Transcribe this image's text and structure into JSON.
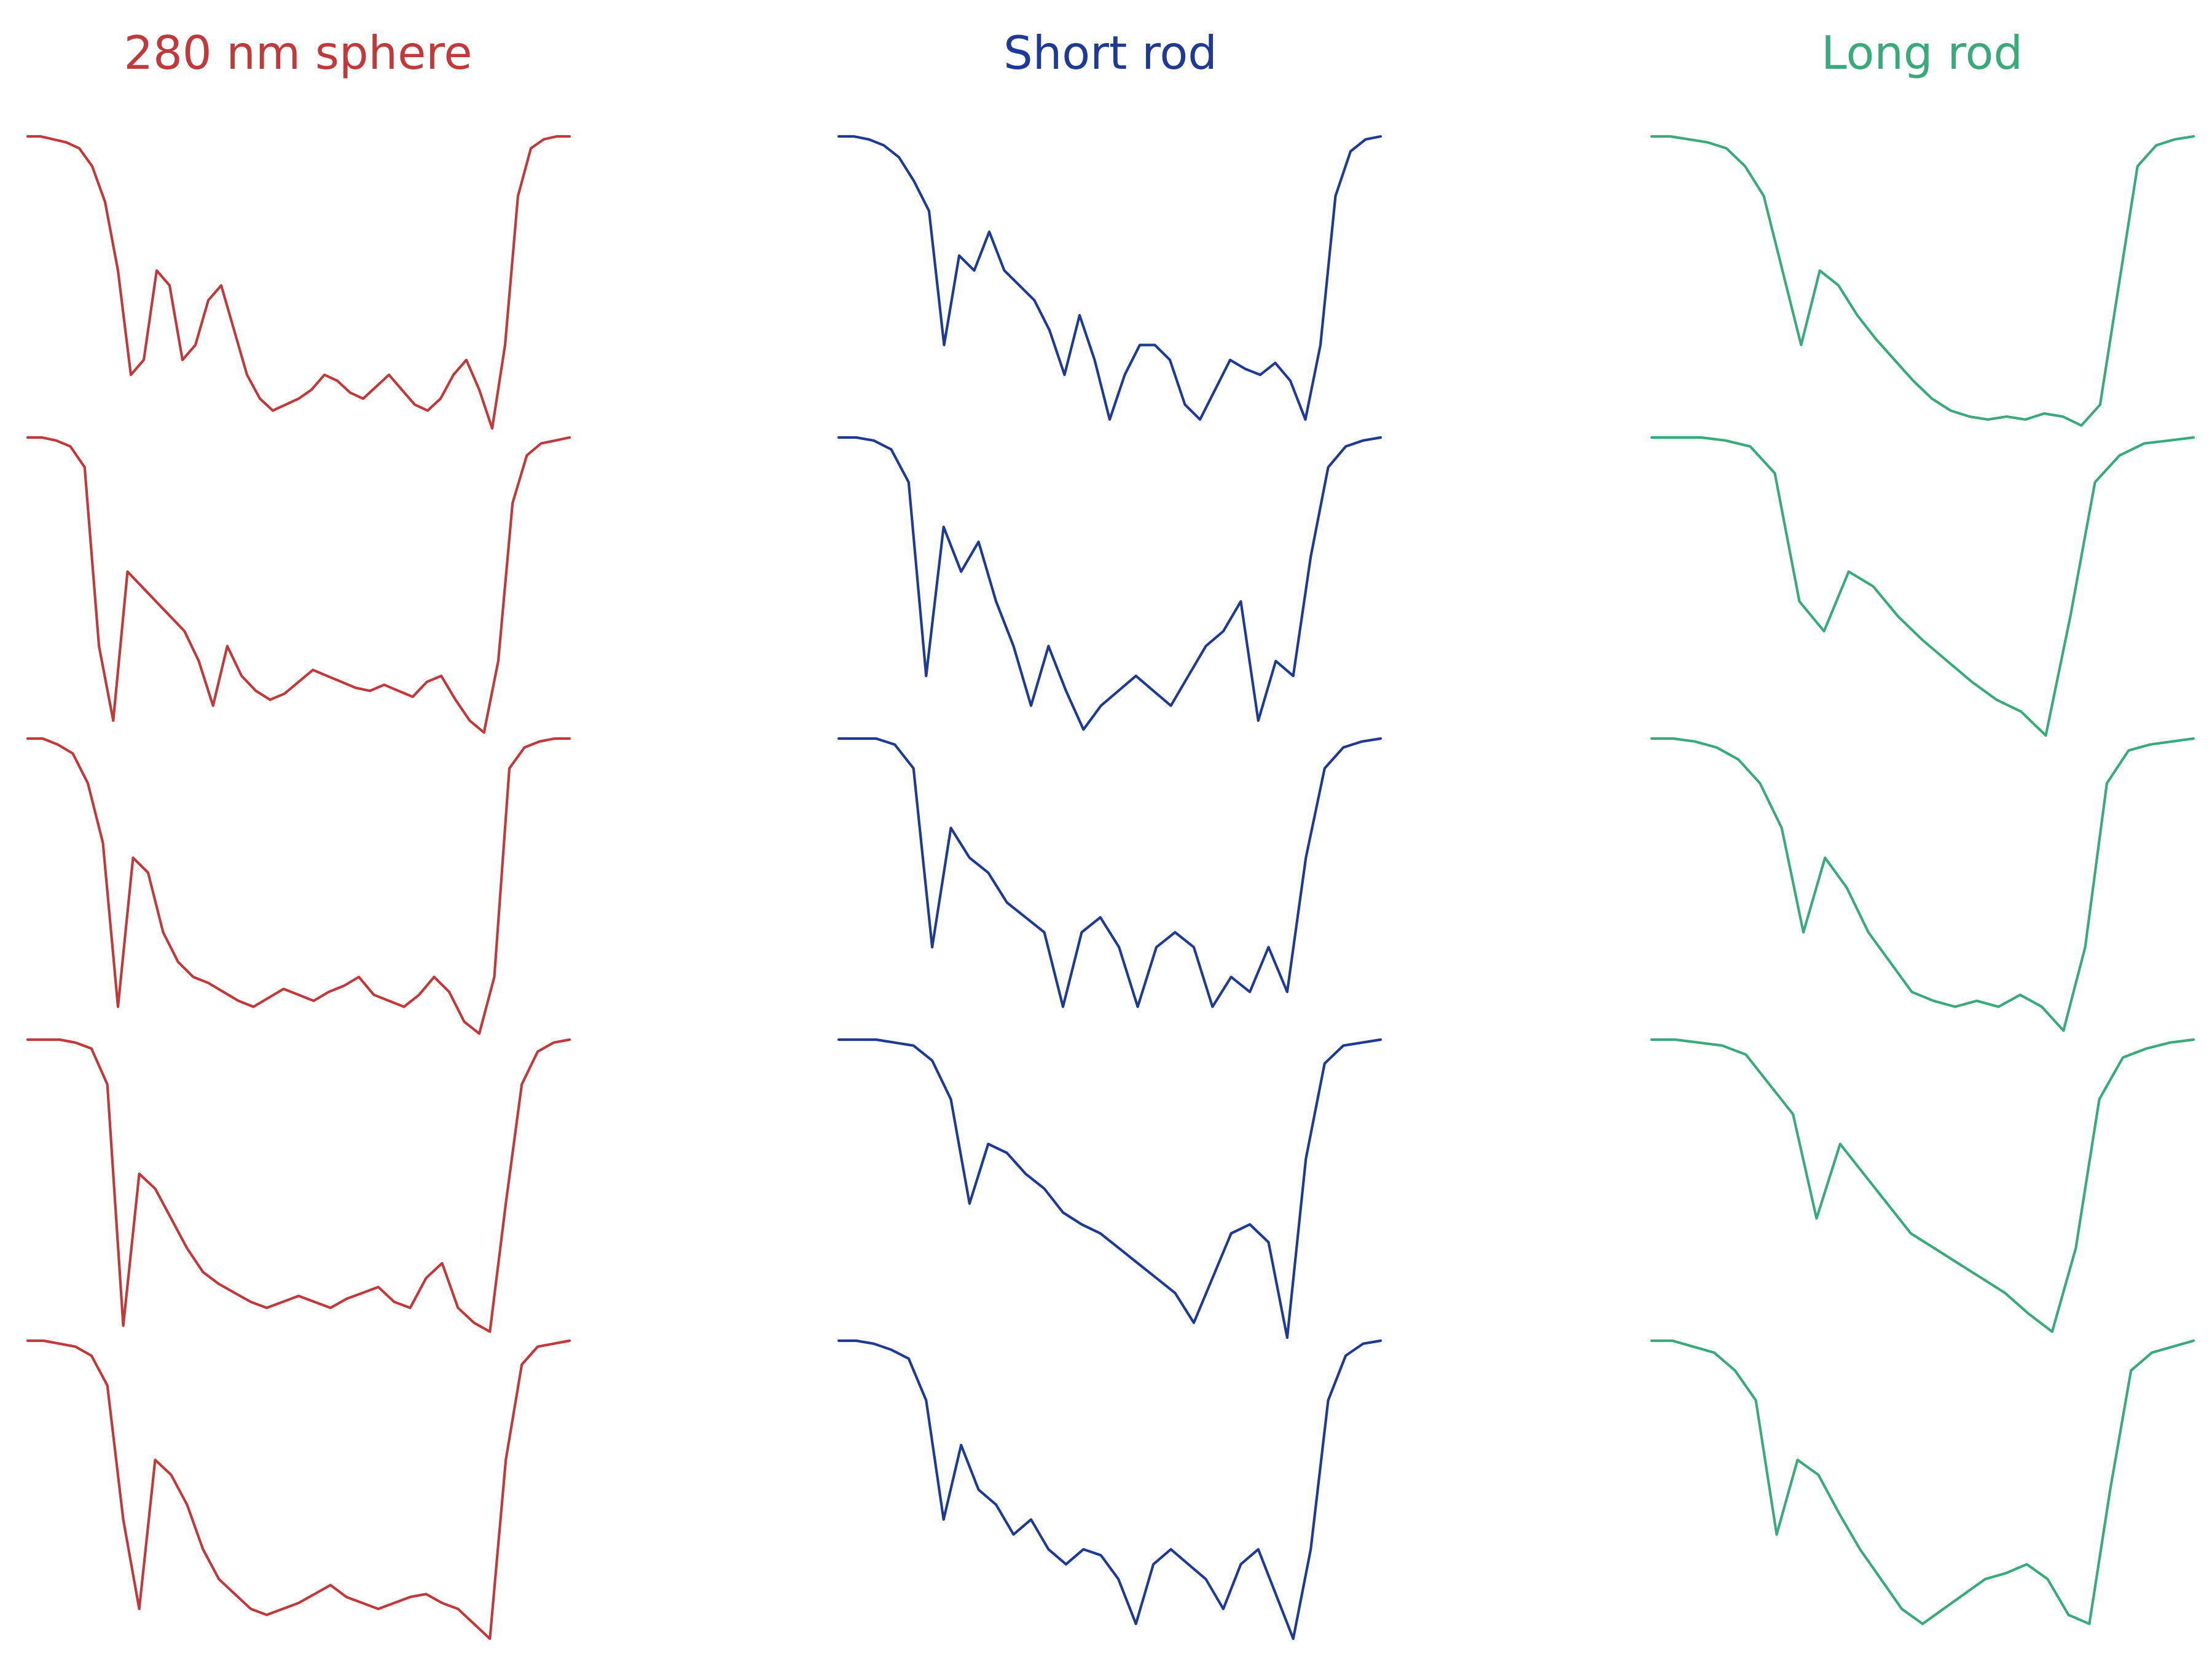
{
  "chart_data": {
    "type": "line",
    "layout": "3 columns x 5 rows of small multiples, no axes, no ticks, no grid",
    "grid": false,
    "legend": "none",
    "columns": [
      {
        "title": "280 nm sphere",
        "color": "#c0393b",
        "traces": [
          {
            "values": [
              1.0,
              1.0,
              0.99,
              0.98,
              0.96,
              0.9,
              0.78,
              0.55,
              0.2,
              0.25,
              0.55,
              0.5,
              0.25,
              0.3,
              0.45,
              0.5,
              0.35,
              0.2,
              0.12,
              0.08,
              0.1,
              0.12,
              0.15,
              0.2,
              0.18,
              0.14,
              0.12,
              0.16,
              0.2,
              0.15,
              0.1,
              0.08,
              0.12,
              0.2,
              0.25,
              0.15,
              0.02,
              0.3,
              0.8,
              0.96,
              0.99,
              1.0,
              1.0
            ]
          },
          {
            "values": [
              1.0,
              1.0,
              0.99,
              0.97,
              0.9,
              0.3,
              0.05,
              0.55,
              0.5,
              0.45,
              0.4,
              0.35,
              0.25,
              0.1,
              0.3,
              0.2,
              0.15,
              0.12,
              0.14,
              0.18,
              0.22,
              0.2,
              0.18,
              0.16,
              0.15,
              0.17,
              0.15,
              0.13,
              0.18,
              0.2,
              0.12,
              0.05,
              0.01,
              0.25,
              0.78,
              0.94,
              0.98,
              0.99,
              1.0
            ]
          },
          {
            "values": [
              1.0,
              1.0,
              0.98,
              0.95,
              0.85,
              0.65,
              0.1,
              0.6,
              0.55,
              0.35,
              0.25,
              0.2,
              0.18,
              0.15,
              0.12,
              0.1,
              0.13,
              0.16,
              0.14,
              0.12,
              0.15,
              0.17,
              0.2,
              0.14,
              0.12,
              0.1,
              0.14,
              0.2,
              0.15,
              0.05,
              0.01,
              0.2,
              0.9,
              0.97,
              0.99,
              1.0,
              1.0
            ]
          },
          {
            "values": [
              1.0,
              1.0,
              1.0,
              0.99,
              0.97,
              0.85,
              0.04,
              0.55,
              0.5,
              0.4,
              0.3,
              0.22,
              0.18,
              0.15,
              0.12,
              0.1,
              0.12,
              0.14,
              0.12,
              0.1,
              0.13,
              0.15,
              0.17,
              0.12,
              0.1,
              0.2,
              0.25,
              0.1,
              0.05,
              0.02,
              0.45,
              0.85,
              0.96,
              0.99,
              1.0
            ]
          },
          {
            "values": [
              1.0,
              1.0,
              0.99,
              0.98,
              0.95,
              0.85,
              0.4,
              0.1,
              0.6,
              0.55,
              0.45,
              0.3,
              0.2,
              0.15,
              0.1,
              0.08,
              0.1,
              0.12,
              0.15,
              0.18,
              0.14,
              0.12,
              0.1,
              0.12,
              0.14,
              0.15,
              0.12,
              0.1,
              0.05,
              0.0,
              0.6,
              0.92,
              0.98,
              0.99,
              1.0
            ]
          }
        ]
      },
      {
        "title": "Short rod",
        "color": "#1f3a93",
        "traces": [
          {
            "values": [
              1.0,
              1.0,
              0.99,
              0.97,
              0.93,
              0.85,
              0.75,
              0.3,
              0.6,
              0.55,
              0.68,
              0.55,
              0.5,
              0.45,
              0.35,
              0.2,
              0.4,
              0.25,
              0.05,
              0.2,
              0.3,
              0.3,
              0.25,
              0.1,
              0.05,
              0.15,
              0.25,
              0.22,
              0.2,
              0.24,
              0.18,
              0.05,
              0.3,
              0.8,
              0.95,
              0.99,
              1.0
            ]
          },
          {
            "values": [
              1.0,
              1.0,
              0.99,
              0.96,
              0.85,
              0.2,
              0.7,
              0.55,
              0.65,
              0.45,
              0.3,
              0.1,
              0.3,
              0.15,
              0.02,
              0.1,
              0.15,
              0.2,
              0.15,
              0.1,
              0.2,
              0.3,
              0.35,
              0.45,
              0.05,
              0.25,
              0.2,
              0.6,
              0.9,
              0.97,
              0.99,
              1.0
            ]
          },
          {
            "values": [
              1.0,
              1.0,
              1.0,
              0.98,
              0.9,
              0.3,
              0.7,
              0.6,
              0.55,
              0.45,
              0.4,
              0.35,
              0.1,
              0.35,
              0.4,
              0.3,
              0.1,
              0.3,
              0.35,
              0.3,
              0.1,
              0.2,
              0.15,
              0.3,
              0.15,
              0.6,
              0.9,
              0.97,
              0.99,
              1.0
            ]
          },
          {
            "values": [
              1.0,
              1.0,
              1.0,
              0.99,
              0.98,
              0.93,
              0.8,
              0.45,
              0.65,
              0.62,
              0.55,
              0.5,
              0.42,
              0.38,
              0.35,
              0.3,
              0.25,
              0.2,
              0.15,
              0.05,
              0.2,
              0.35,
              0.38,
              0.32,
              0.0,
              0.6,
              0.92,
              0.98,
              0.99,
              1.0
            ]
          },
          {
            "values": [
              1.0,
              1.0,
              0.99,
              0.97,
              0.94,
              0.8,
              0.4,
              0.65,
              0.5,
              0.45,
              0.35,
              0.4,
              0.3,
              0.25,
              0.3,
              0.28,
              0.2,
              0.05,
              0.25,
              0.3,
              0.25,
              0.2,
              0.1,
              0.25,
              0.3,
              0.15,
              0.0,
              0.3,
              0.8,
              0.95,
              0.99,
              1.0
            ]
          }
        ]
      },
      {
        "title": "Long rod",
        "color": "#3aaa7c",
        "traces": [
          {
            "values": [
              1.0,
              1.0,
              0.99,
              0.98,
              0.96,
              0.9,
              0.8,
              0.55,
              0.3,
              0.55,
              0.5,
              0.4,
              0.32,
              0.25,
              0.18,
              0.12,
              0.08,
              0.06,
              0.05,
              0.06,
              0.05,
              0.07,
              0.06,
              0.03,
              0.1,
              0.5,
              0.9,
              0.97,
              0.99,
              1.0
            ]
          },
          {
            "values": [
              1.0,
              1.0,
              1.0,
              0.99,
              0.97,
              0.88,
              0.45,
              0.35,
              0.55,
              0.5,
              0.4,
              0.32,
              0.25,
              0.18,
              0.12,
              0.08,
              0.0,
              0.4,
              0.85,
              0.94,
              0.98,
              0.99,
              1.0
            ]
          },
          {
            "values": [
              1.0,
              1.0,
              0.99,
              0.97,
              0.93,
              0.85,
              0.7,
              0.35,
              0.6,
              0.5,
              0.35,
              0.25,
              0.15,
              0.12,
              0.1,
              0.12,
              0.1,
              0.14,
              0.1,
              0.02,
              0.3,
              0.85,
              0.96,
              0.98,
              0.99,
              1.0
            ]
          },
          {
            "values": [
              1.0,
              1.0,
              0.99,
              0.98,
              0.95,
              0.85,
              0.75,
              0.4,
              0.65,
              0.55,
              0.45,
              0.35,
              0.3,
              0.25,
              0.2,
              0.15,
              0.08,
              0.02,
              0.3,
              0.8,
              0.94,
              0.97,
              0.99,
              1.0
            ]
          },
          {
            "values": [
              1.0,
              1.0,
              0.98,
              0.96,
              0.9,
              0.8,
              0.35,
              0.6,
              0.55,
              0.42,
              0.3,
              0.2,
              0.1,
              0.05,
              0.1,
              0.15,
              0.2,
              0.22,
              0.25,
              0.2,
              0.08,
              0.05,
              0.5,
              0.9,
              0.96,
              0.98,
              1.0
            ]
          }
        ]
      }
    ]
  }
}
